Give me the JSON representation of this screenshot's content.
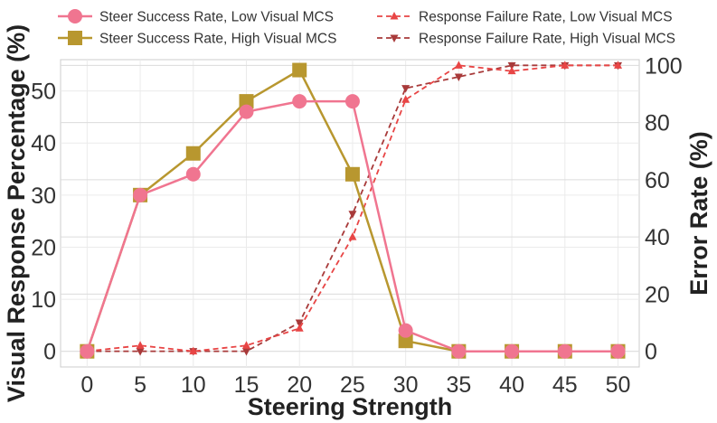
{
  "chart_data": {
    "type": "line",
    "x": [
      0,
      5,
      10,
      15,
      20,
      25,
      30,
      35,
      40,
      45,
      50
    ],
    "xlabel": "Steering Strength",
    "ylabel_left": "Visual Response Percentage (%)",
    "ylabel_right": "Error Rate (%)",
    "xlim": [
      -2.5,
      52
    ],
    "ylim_left": [
      -3,
      56
    ],
    "ylim_right": [
      -5.5,
      102
    ],
    "xticks": [
      "0",
      "5",
      "10",
      "15",
      "20",
      "25",
      "30",
      "35",
      "40",
      "45",
      "50"
    ],
    "yticks_left": [
      "0",
      "10",
      "20",
      "30",
      "40",
      "50"
    ],
    "yticks_right": [
      "0",
      "20",
      "40",
      "60",
      "80",
      "100"
    ],
    "grid": true,
    "legend_position": "top",
    "series": [
      {
        "name": "Steer Success Rate, Low Visual MCS",
        "axis": "left",
        "style": "solid",
        "marker": "circle",
        "color": "#F07590",
        "values": [
          0,
          30,
          34,
          46,
          48,
          48,
          4,
          0,
          0,
          0,
          0
        ]
      },
      {
        "name": "Steer Success Rate, High Visual MCS",
        "axis": "left",
        "style": "solid",
        "marker": "square",
        "color": "#B8972F",
        "values": [
          0,
          30,
          38,
          48,
          54,
          34,
          2,
          0,
          0,
          0,
          0
        ]
      },
      {
        "name": "Response Failure Rate, Low Visual MCS",
        "axis": "right",
        "style": "dashed",
        "marker": "triangle-up",
        "color": "#E84545",
        "values": [
          0,
          2,
          0,
          2,
          8,
          40,
          88,
          100,
          98,
          100,
          100
        ]
      },
      {
        "name": "Response Failure Rate, High Visual MCS",
        "axis": "right",
        "style": "dashed",
        "marker": "triangle-down",
        "color": "#A83A3A",
        "values": [
          0,
          0,
          0,
          0,
          10,
          48,
          92,
          96,
          100,
          100,
          100
        ]
      }
    ]
  }
}
